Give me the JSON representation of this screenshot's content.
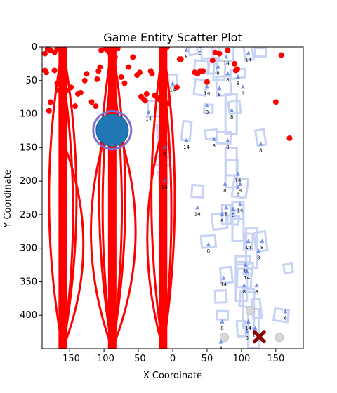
{
  "chart_data": {
    "type": "scatter",
    "title": "Game Entity Scatter Plot",
    "xlabel": "X Coordinate",
    "ylabel": "Y Coordinate",
    "xlim": [
      -190,
      190
    ],
    "ylim": [
      450,
      0
    ],
    "y_inverted": true,
    "grid": false,
    "x_ticks": [
      -150,
      -100,
      -50,
      0,
      50,
      100,
      150
    ],
    "y_ticks": [
      0,
      50,
      100,
      150,
      200,
      250,
      300,
      350,
      400
    ],
    "colors": {
      "enemy": "#ff0000",
      "player": "#1f77b4",
      "target": "#8b0000",
      "wall": "#c7d3f5",
      "item": "#4a6fe0",
      "ghost": "#d9d9d9"
    },
    "series": [
      {
        "kind": "enemy-points",
        "points": [
          [
            -186,
            10
          ],
          [
            -182,
            3
          ],
          [
            -178,
            5
          ],
          [
            -172,
            8
          ],
          [
            -168,
            3
          ],
          [
            -164,
            0
          ],
          [
            -160,
            6
          ],
          [
            -186,
            35
          ],
          [
            -184,
            38
          ],
          [
            -180,
            95
          ],
          [
            -178,
            82
          ],
          [
            -172,
            35
          ],
          [
            -168,
            54
          ],
          [
            -165,
            65
          ],
          [
            -162,
            50
          ],
          [
            -158,
            94
          ],
          [
            -155,
            65
          ],
          [
            -148,
            60
          ],
          [
            -142,
            88
          ],
          [
            -138,
            70
          ],
          [
            -134,
            68
          ],
          [
            -128,
            50
          ],
          [
            -125,
            40
          ],
          [
            -118,
            82
          ],
          [
            -112,
            88
          ],
          [
            -110,
            48
          ],
          [
            -108,
            36
          ],
          [
            -106,
            30
          ],
          [
            -104,
            5
          ],
          [
            -98,
            0
          ],
          [
            -96,
            4
          ],
          [
            -92,
            8
          ],
          [
            -88,
            10
          ],
          [
            -84,
            15
          ],
          [
            -80,
            2
          ],
          [
            -75,
            45
          ],
          [
            -70,
            54
          ],
          [
            -64,
            30
          ],
          [
            -58,
            15
          ],
          [
            -52,
            42
          ],
          [
            -48,
            38
          ],
          [
            -46,
            74
          ],
          [
            -42,
            78
          ],
          [
            -40,
            80
          ],
          [
            -38,
            70
          ],
          [
            -32,
            36
          ],
          [
            -30,
            40
          ],
          [
            -26,
            72
          ],
          [
            -22,
            76
          ],
          [
            -18,
            80
          ],
          [
            -15,
            84
          ],
          [
            -12,
            80
          ],
          [
            -8,
            0
          ],
          [
            -6,
            84
          ],
          [
            10,
            18
          ],
          [
            12,
            18
          ],
          [
            6,
            60
          ],
          [
            32,
            38
          ],
          [
            36,
            40
          ],
          [
            40,
            36
          ],
          [
            44,
            36
          ],
          [
            50,
            52
          ],
          [
            58,
            20
          ],
          [
            62,
            8
          ],
          [
            68,
            10
          ],
          [
            80,
            5
          ],
          [
            90,
            25
          ],
          [
            92,
            35
          ],
          [
            94,
            33
          ],
          [
            150,
            82
          ],
          [
            158,
            12
          ],
          [
            170,
            136
          ]
        ]
      },
      {
        "kind": "enemy-path",
        "note": "thick vertical spawn lanes",
        "lanes_x": [
          -160,
          -88,
          -14
        ]
      },
      {
        "kind": "player",
        "points": [
          [
            -88,
            124
          ]
        ],
        "size": "large"
      },
      {
        "kind": "target",
        "points": [
          [
            126,
            432
          ]
        ]
      },
      {
        "kind": "ghost",
        "points": [
          [
            75,
            433
          ],
          [
            113,
            393
          ],
          [
            155,
            433
          ]
        ]
      },
      {
        "kind": "item",
        "labels": [
          "8",
          "8",
          "14",
          "14",
          "8",
          "8",
          "8",
          "8",
          "14",
          "14",
          "8",
          "8",
          "8",
          "14",
          "14",
          "8",
          "8",
          "8",
          "8",
          "14",
          "14",
          "8",
          "8",
          "8",
          "14",
          "14",
          "8",
          "8",
          "8",
          "8",
          "14",
          "8",
          "8",
          "8",
          "14",
          "14",
          "8",
          "8",
          "8",
          "8",
          "14",
          "14",
          "8",
          "8",
          "8",
          "14",
          "14"
        ]
      }
    ]
  }
}
